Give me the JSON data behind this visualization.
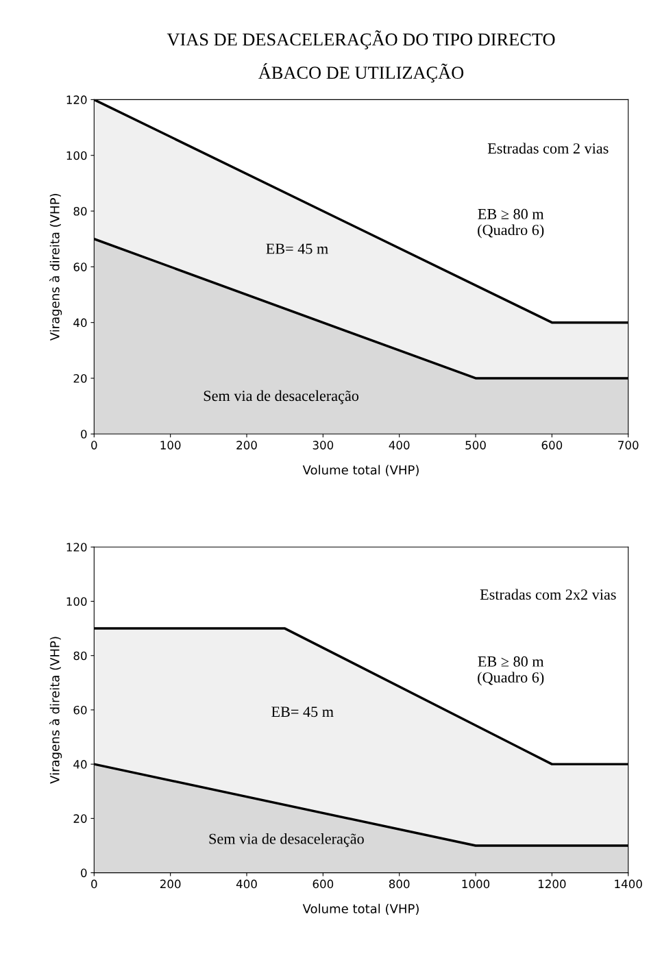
{
  "chart_data": [
    {
      "type": "area",
      "title": "VIAS DE DESACELERAÇÃO DO TIPO DIRECTO\nÁBACO DE UTILIZAÇÃO",
      "xlabel": "Volume total (VHP)",
      "ylabel": "Viragens à direita (VHP)",
      "xlim": [
        0,
        700
      ],
      "xticks": [
        0,
        100,
        200,
        300,
        400,
        500,
        600,
        700
      ],
      "ylim": [
        0,
        120
      ],
      "yticks": [
        0,
        20,
        40,
        60,
        80,
        100,
        120
      ],
      "grid": false,
      "legend": false,
      "series": [
        {
          "color": "#f0f0f0",
          "x": [
            0,
            600,
            700
          ],
          "values": [
            120,
            40,
            40
          ]
        },
        {
          "color": "#d9d9d9",
          "x": [
            0,
            500,
            700
          ],
          "values": [
            70,
            20,
            20
          ]
        }
      ],
      "annotations": [
        "Estradas com 2 vias",
        "EB ≥ 80 m\n(Quadro 6)",
        "EB= 45 m",
        "Sem via de desaceleração"
      ]
    },
    {
      "type": "area",
      "xlabel": "Volume total (VHP)",
      "ylabel": "Viragens à direita (VHP)",
      "xlim": [
        0,
        1400
      ],
      "xticks": [
        0,
        200,
        400,
        600,
        800,
        1000,
        1200,
        1400
      ],
      "ylim": [
        0,
        120
      ],
      "yticks": [
        0,
        20,
        40,
        60,
        80,
        100,
        120
      ],
      "grid": false,
      "legend": false,
      "series": [
        {
          "color": "#f0f0f0",
          "x": [
            0,
            500,
            1200,
            1400
          ],
          "values": [
            90,
            90,
            40,
            40
          ]
        },
        {
          "color": "#d9d9d9",
          "x": [
            0,
            1000,
            1400
          ],
          "values": [
            40,
            10,
            10
          ]
        }
      ],
      "annotations": [
        "Estradas com 2x2 vias",
        "EB ≥ 80 m\n(Quadro 6)",
        "EB= 45 m",
        "Sem via de desaceleração"
      ]
    }
  ]
}
